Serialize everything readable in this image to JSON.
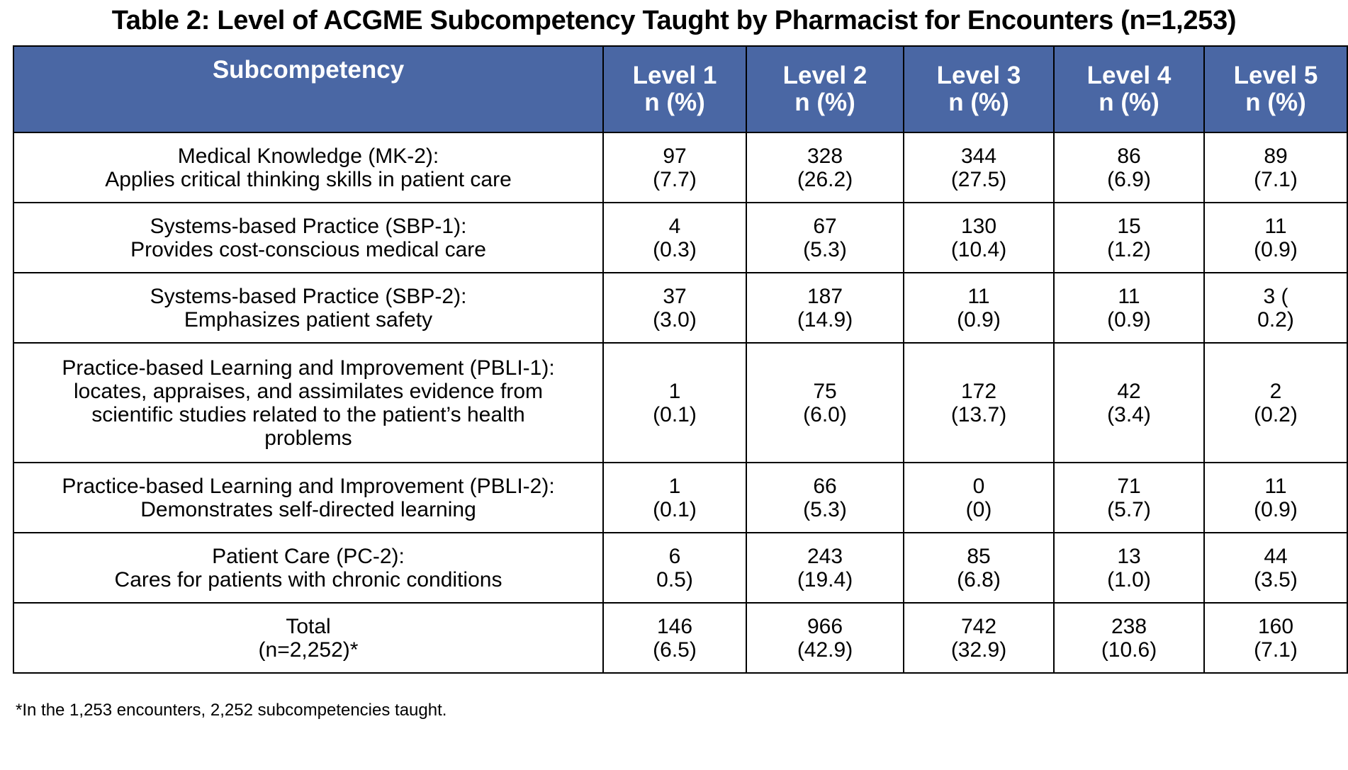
{
  "title": "Table 2: Level of ACGME Subcompetency Taught by Pharmacist for Encounters (n=1,253)",
  "columns": [
    {
      "label": "Subcompetency",
      "sub": ""
    },
    {
      "label": "Level 1",
      "sub": "n (%)"
    },
    {
      "label": "Level 2",
      "sub": "n (%)"
    },
    {
      "label": "Level 3",
      "sub": "n (%)"
    },
    {
      "label": "Level 4",
      "sub": "n (%)"
    },
    {
      "label": "Level 5",
      "sub": "n (%)"
    }
  ],
  "rows": [
    {
      "subcompetency": [
        "Medical Knowledge (MK-2):",
        "Applies critical thinking skills in patient care"
      ],
      "cells": [
        [
          "97",
          "(7.7)"
        ],
        [
          "328",
          "(26.2)"
        ],
        [
          "344",
          "(27.5)"
        ],
        [
          "86",
          "(6.9)"
        ],
        [
          "89",
          "(7.1)"
        ]
      ]
    },
    {
      "subcompetency": [
        "Systems-based Practice (SBP-1):",
        "Provides cost-conscious medical care"
      ],
      "cells": [
        [
          "4",
          "(0.3)"
        ],
        [
          "67",
          "(5.3)"
        ],
        [
          "130",
          "(10.4)"
        ],
        [
          "15",
          "(1.2)"
        ],
        [
          "11",
          "(0.9)"
        ]
      ]
    },
    {
      "subcompetency": [
        "Systems-based Practice (SBP-2):",
        "Emphasizes patient safety"
      ],
      "cells": [
        [
          "37",
          "(3.0)"
        ],
        [
          "187",
          "(14.9)"
        ],
        [
          "11",
          "(0.9)"
        ],
        [
          "11",
          "(0.9)"
        ],
        [
          "3 (",
          "0.2)"
        ]
      ]
    },
    {
      "subcompetency": [
        "Practice-based Learning and Improvement (PBLI-1):",
        "locates, appraises, and assimilates evidence from",
        "scientific studies related to the patient’s health",
        "problems"
      ],
      "cells": [
        [
          "1",
          "(0.1)"
        ],
        [
          "75",
          "(6.0)"
        ],
        [
          "172",
          "(13.7)"
        ],
        [
          "42",
          "(3.4)"
        ],
        [
          "2",
          "(0.2)"
        ]
      ]
    },
    {
      "subcompetency": [
        "Practice-based Learning and Improvement (PBLI-2):",
        "Demonstrates self-directed learning"
      ],
      "cells": [
        [
          "1",
          "(0.1)"
        ],
        [
          "66",
          "(5.3)"
        ],
        [
          "0",
          "(0)"
        ],
        [
          "71",
          "(5.7)"
        ],
        [
          "11",
          "(0.9)"
        ]
      ]
    },
    {
      "subcompetency": [
        "Patient Care (PC-2):",
        "Cares for patients with chronic conditions"
      ],
      "cells": [
        [
          "6",
          "0.5)"
        ],
        [
          "243",
          "(19.4)"
        ],
        [
          "85",
          "(6.8)"
        ],
        [
          "13",
          "(1.0)"
        ],
        [
          "44",
          "(3.5)"
        ]
      ]
    },
    {
      "subcompetency": [
        "Total",
        "(n=2,252)*"
      ],
      "cells": [
        [
          "146",
          "(6.5)"
        ],
        [
          "966",
          "(42.9)"
        ],
        [
          "742",
          "(32.9)"
        ],
        [
          "238",
          "(10.6)"
        ],
        [
          "160",
          "(7.1)"
        ]
      ]
    }
  ],
  "footnote": "*In the 1,253 encounters, 2,252 subcompetencies taught.",
  "colors": {
    "header_background": "#4a67a4",
    "header_text": "#ffffff",
    "border": "#000000"
  }
}
